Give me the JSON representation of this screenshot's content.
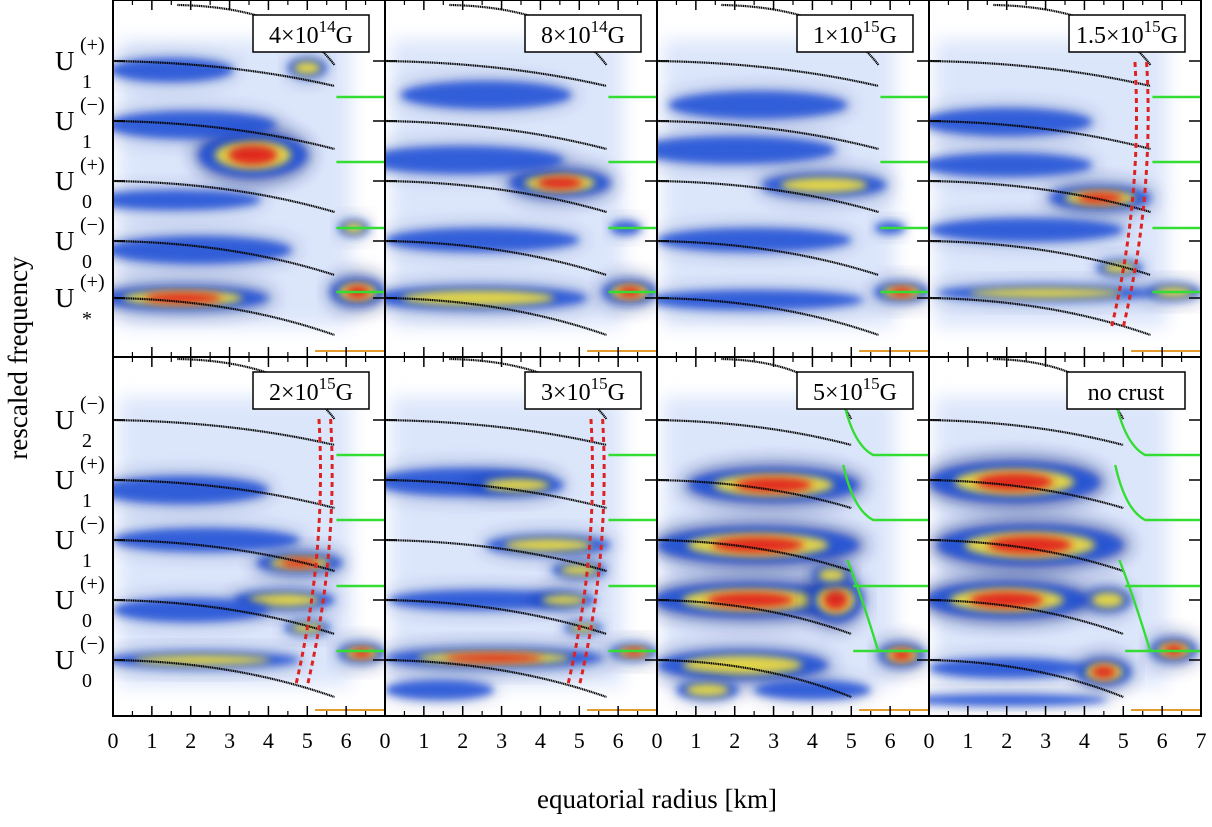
{
  "chart_data": {
    "type": "heatmap",
    "xlabel": "equatorial radius [km]",
    "ylabel": "rescaled frequency",
    "x_ticks": [
      "0",
      "1",
      "2",
      "3",
      "4",
      "5",
      "6",
      "0",
      "1",
      "2",
      "3",
      "4",
      "5",
      "6",
      "0",
      "1",
      "2",
      "3",
      "4",
      "5",
      "6",
      "0",
      "1",
      "2",
      "3",
      "4",
      "5",
      "6",
      "7"
    ],
    "xlim": [
      0,
      7
    ],
    "grid_rows": 2,
    "grid_cols": 4,
    "top_row_y_labels": [
      {
        "base": "U",
        "sup": "(+)",
        "sub": "1"
      },
      {
        "base": "U",
        "sup": "(−)",
        "sub": "1"
      },
      {
        "base": "U",
        "sup": "(+)",
        "sub": "0"
      },
      {
        "base": "U",
        "sup": "(−)",
        "sub": "0"
      },
      {
        "base": "U",
        "sup": "(+)",
        "sub": "*"
      }
    ],
    "bottom_row_y_labels": [
      {
        "base": "U",
        "sup": "(−)",
        "sub": "2"
      },
      {
        "base": "U",
        "sup": "(+)",
        "sub": "1"
      },
      {
        "base": "U",
        "sup": "(−)",
        "sub": "1"
      },
      {
        "base": "U",
        "sup": "(+)",
        "sub": "0"
      },
      {
        "base": "U",
        "sup": "(−)",
        "sub": "0"
      }
    ],
    "panels": [
      {
        "label_base": "4×10",
        "label_exp": "14",
        "label_unit": "G",
        "crust_end_km": 5.7,
        "green_blocks": [
          [
            0.16
          ],
          [
            0.36
          ],
          [
            0.58
          ],
          [
            0.78
          ]
        ]
      },
      {
        "label_base": "8×10",
        "label_exp": "14",
        "label_unit": "G",
        "crust_end_km": 5.7
      },
      {
        "label_base": "1×10",
        "label_exp": "15",
        "label_unit": "G",
        "crust_end_km": 5.7
      },
      {
        "label_base": "1.5×10",
        "label_exp": "15",
        "label_unit": "G",
        "crust_end_km": 5.7
      },
      {
        "label_base": "2×10",
        "label_exp": "15",
        "label_unit": "G",
        "crust_end_km": 5.7
      },
      {
        "label_base": "3×10",
        "label_exp": "15",
        "label_unit": "G",
        "crust_end_km": 5.7
      },
      {
        "label_base": "5×10",
        "label_exp": "15",
        "label_unit": "G",
        "crust_end_km": 5.0
      },
      {
        "label_base": "no crust",
        "label_exp": "",
        "label_unit": "",
        "crust_end_km": 5.0
      }
    ],
    "colors": {
      "heat_low": "#ffffff",
      "heat_blue": "#1d4fd8",
      "heat_dark": "#0a1a78",
      "heat_yellow": "#f4e13a",
      "heat_red": "#e2211c",
      "analytic_curve": "#000000",
      "alfven_continuum": "#33dd33",
      "crust_mode": "#dd2222",
      "frame": "#000000"
    }
  }
}
